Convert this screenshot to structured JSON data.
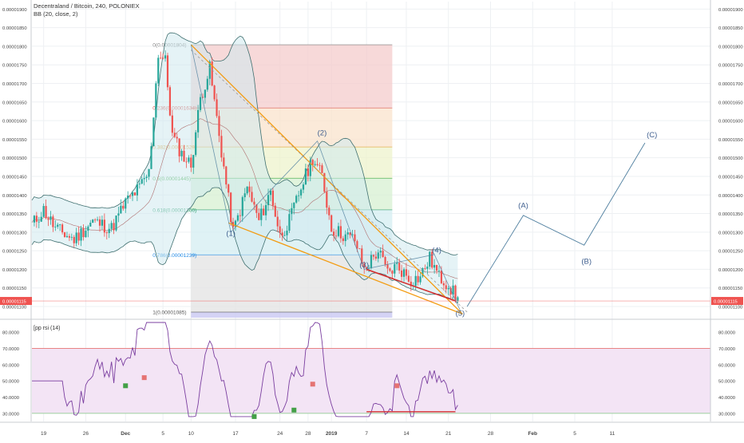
{
  "header": {
    "symbol": "Decentraland / Bitcoin, 240, POLONIEX",
    "indicator": "BB (20, close, 2)"
  },
  "rsi_label": "[pp rsi (14)",
  "colors": {
    "bull": "#26a69a",
    "bear": "#ef5350",
    "bb_fill": "#cfe9ef",
    "bb_line": "#3f6f6f",
    "wave": "#4f7f9f",
    "trend_orange": "#f39c12",
    "trend_red": "#d32f2f",
    "rsi_line": "#7b3fa0",
    "rsi_fill": "#f3e4f5",
    "price_tag": "#ef5350"
  },
  "chart_data": [
    {
      "type": "candlestick",
      "title": "Decentraland / Bitcoin, 240, POLONIEX",
      "ylim": [
        1.07e-05,
        1.92e-05
      ],
      "y_ticks": [
        "0.00001900",
        "0.00001850",
        "0.00001800",
        "0.00001750",
        "0.00001700",
        "0.00001650",
        "0.00001600",
        "0.00001550",
        "0.00001500",
        "0.00001450",
        "0.00001400",
        "0.00001350",
        "0.00001300",
        "0.00001250",
        "0.00001200",
        "0.00001150",
        "0.00001100"
      ],
      "x_ticks": [
        "19",
        "26",
        "Dec",
        "5",
        "10",
        "17",
        "24",
        "28",
        "2019",
        "7",
        "14",
        "21",
        "28",
        "Feb",
        "5",
        "11"
      ],
      "last_price": "0.00001115",
      "fib_levels": [
        {
          "label": "0(0.00001804)",
          "value": 1.804e-05,
          "fill": "#f4cccc"
        },
        {
          "label": "0.236(0.00001634)",
          "value": 1.634e-05,
          "fill": "#f9e3cc"
        },
        {
          "label": "0.382(0.00001529)",
          "value": 1.529e-05,
          "fill": "#eef3cc"
        },
        {
          "label": "0.5(0.00001445)",
          "value": 1.445e-05,
          "fill": "#d7f0d2"
        },
        {
          "label": "0.618(0.00001360)",
          "value": 1.36e-05,
          "fill": "#d4eef2"
        },
        {
          "label": "0.786(0.00001239)",
          "value": 1.239e-05,
          "fill": "#e3e3e3"
        },
        {
          "label": "1(0.00001085)",
          "value": 1.085e-05,
          "fill": "#d5d4f5"
        }
      ],
      "wave_labels": [
        {
          "label": "(1)",
          "t": 85,
          "v": 1.29e-05
        },
        {
          "label": "(2)",
          "t": 124,
          "v": 1.56e-05
        },
        {
          "label": "(3)",
          "t": 142,
          "v": 1.205e-05
        },
        {
          "label": "(4)",
          "t": 173,
          "v": 1.245e-05
        },
        {
          "label": "(5)",
          "t": 183,
          "v": 1.075e-05
        },
        {
          "label": "(A)",
          "t": 210,
          "v": 1.365e-05
        },
        {
          "label": "(B)",
          "t": 237,
          "v": 1.215e-05
        },
        {
          "label": "(C)",
          "t": 265,
          "v": 1.555e-05
        }
      ],
      "projection": [
        [
          186,
          1.1e-05
        ],
        [
          210,
          1.345e-05
        ],
        [
          236,
          1.265e-05
        ],
        [
          262,
          1.54e-05
        ]
      ]
    },
    {
      "type": "line",
      "series": [
        {
          "name": "[pp rsi (14)"
        }
      ],
      "ylim": [
        25,
        87
      ],
      "y_ticks": [
        "80.0000",
        "70.0000",
        "60.0000",
        "50.0000",
        "40.0000",
        "30.0000"
      ],
      "bands": [
        70,
        30
      ]
    }
  ]
}
